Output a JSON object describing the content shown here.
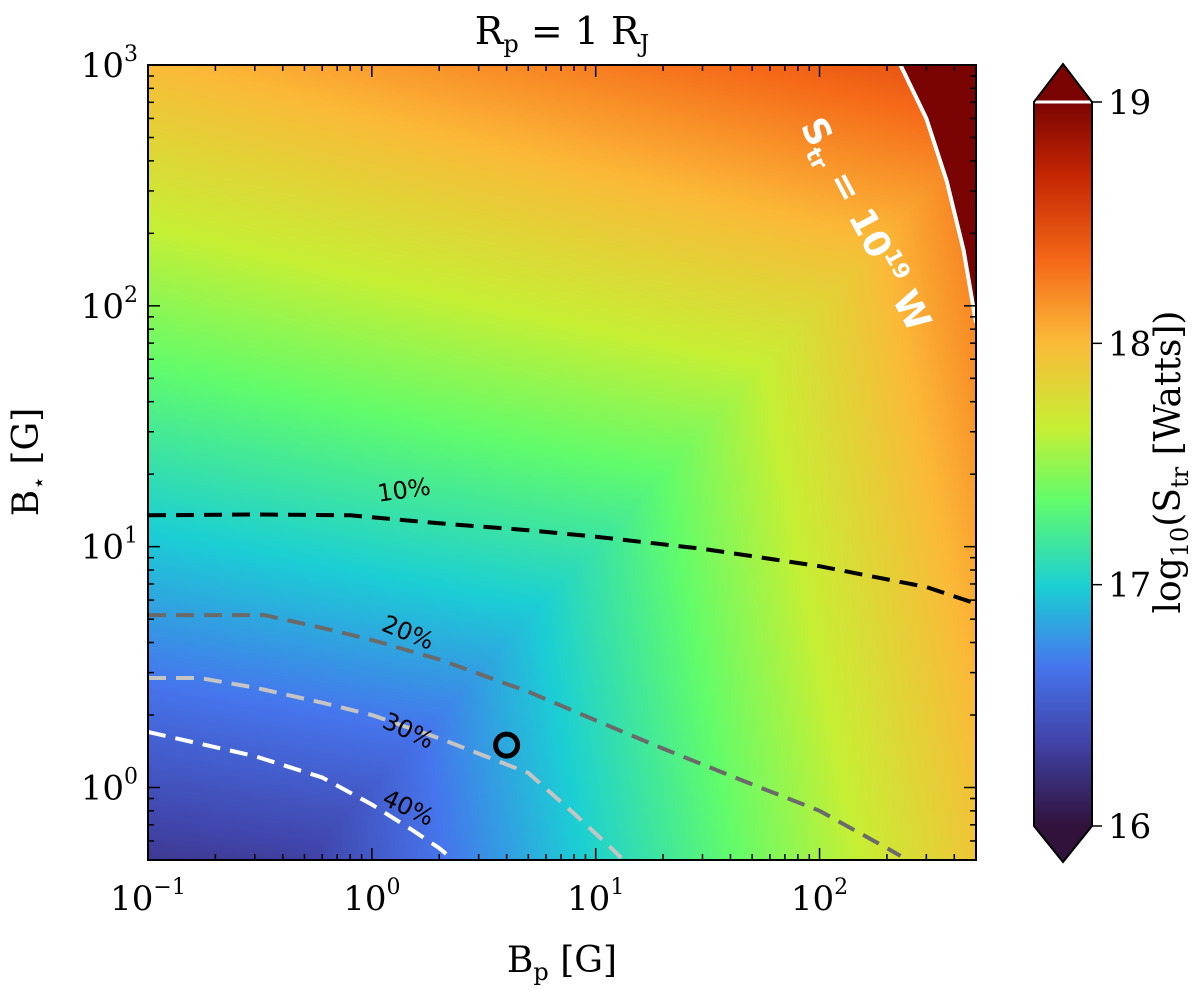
{
  "chart_data": {
    "type": "heatmap",
    "title": "R_p = 1 R_J",
    "title_parts": {
      "lhs": "R",
      "lhs_sub": "p",
      "eq": " = 1 R",
      "rhs_sub": "J"
    },
    "xlabel": "B_p [G]",
    "xlabel_parts": {
      "base": "B",
      "sub": "p",
      "unit": " [G]"
    },
    "ylabel": "B_⋆ [G]",
    "ylabel_parts": {
      "base": "B",
      "sub": "⋆",
      "unit": " [G]"
    },
    "xscale": "log",
    "yscale": "log",
    "xlim": [
      0.1,
      500
    ],
    "ylim": [
      0.5,
      1000
    ],
    "x_ticks": [
      {
        "value": 0.1,
        "base": "10",
        "exp": "−1"
      },
      {
        "value": 1,
        "base": "10",
        "exp": "0"
      },
      {
        "value": 10,
        "base": "10",
        "exp": "1"
      },
      {
        "value": 100,
        "base": "10",
        "exp": "2"
      }
    ],
    "y_ticks": [
      {
        "value": 1,
        "base": "10",
        "exp": "0"
      },
      {
        "value": 10,
        "base": "10",
        "exp": "1"
      },
      {
        "value": 100,
        "base": "10",
        "exp": "2"
      },
      {
        "value": 1000,
        "base": "10",
        "exp": "3"
      }
    ],
    "colorbar": {
      "label": "log10(S_tr [Watts])",
      "label_parts": {
        "pre": "log",
        "pre_sub": "10",
        "mid": "(S",
        "mid_sub": "tr",
        "post": " [Watts])"
      },
      "range": [
        16,
        19
      ],
      "ticks": [
        16,
        17,
        18,
        19
      ],
      "extend": "both",
      "colormap": "turbo"
    },
    "contours": [
      {
        "label": "10%",
        "color": "#000000",
        "points": [
          [
            0.1,
            13.5
          ],
          [
            0.3,
            13.6
          ],
          [
            0.8,
            13.5
          ],
          [
            2,
            12.5
          ],
          [
            5,
            11.7
          ],
          [
            10,
            11
          ],
          [
            30,
            9.8
          ],
          [
            100,
            8.3
          ],
          [
            300,
            6.8
          ],
          [
            500,
            5.8
          ]
        ]
      },
      {
        "label": "20%",
        "color": "#6a6a6a",
        "points": [
          [
            0.1,
            5.2
          ],
          [
            0.2,
            5.2
          ],
          [
            0.33,
            5.2
          ],
          [
            0.6,
            4.6
          ],
          [
            1,
            4.1
          ],
          [
            2,
            3.4
          ],
          [
            5,
            2.5
          ],
          [
            10,
            1.9
          ],
          [
            20,
            1.45
          ],
          [
            50,
            1.03
          ],
          [
            100,
            0.8
          ],
          [
            200,
            0.56
          ],
          [
            230,
            0.52
          ]
        ]
      },
      {
        "label": "30%",
        "color": "#c4c4c4",
        "points": [
          [
            0.1,
            2.85
          ],
          [
            0.17,
            2.85
          ],
          [
            0.3,
            2.6
          ],
          [
            0.6,
            2.25
          ],
          [
            1,
            2.0
          ],
          [
            2,
            1.6
          ],
          [
            5,
            1.15
          ],
          [
            8,
            0.78
          ],
          [
            12,
            0.55
          ],
          [
            13,
            0.51
          ]
        ]
      },
      {
        "label": "40%",
        "color": "#ffffff",
        "points": [
          [
            0.1,
            1.7
          ],
          [
            0.3,
            1.35
          ],
          [
            0.6,
            1.1
          ],
          [
            1,
            0.85
          ],
          [
            1.5,
            0.67
          ],
          [
            2,
            0.56
          ],
          [
            2.2,
            0.52
          ]
        ]
      }
    ],
    "threshold_curve": {
      "label_base": "S",
      "label_sub": "tr",
      "label_mid": " = 10",
      "label_exp": "19",
      "label_unit": " W",
      "color": "#ffffff",
      "points": [
        [
          230,
          1000
        ],
        [
          300,
          600
        ],
        [
          370,
          330
        ],
        [
          440,
          170
        ],
        [
          490,
          95
        ],
        [
          500,
          85
        ]
      ]
    },
    "marker": {
      "x": 4,
      "y": 1.5,
      "shape": "open-circle"
    }
  }
}
